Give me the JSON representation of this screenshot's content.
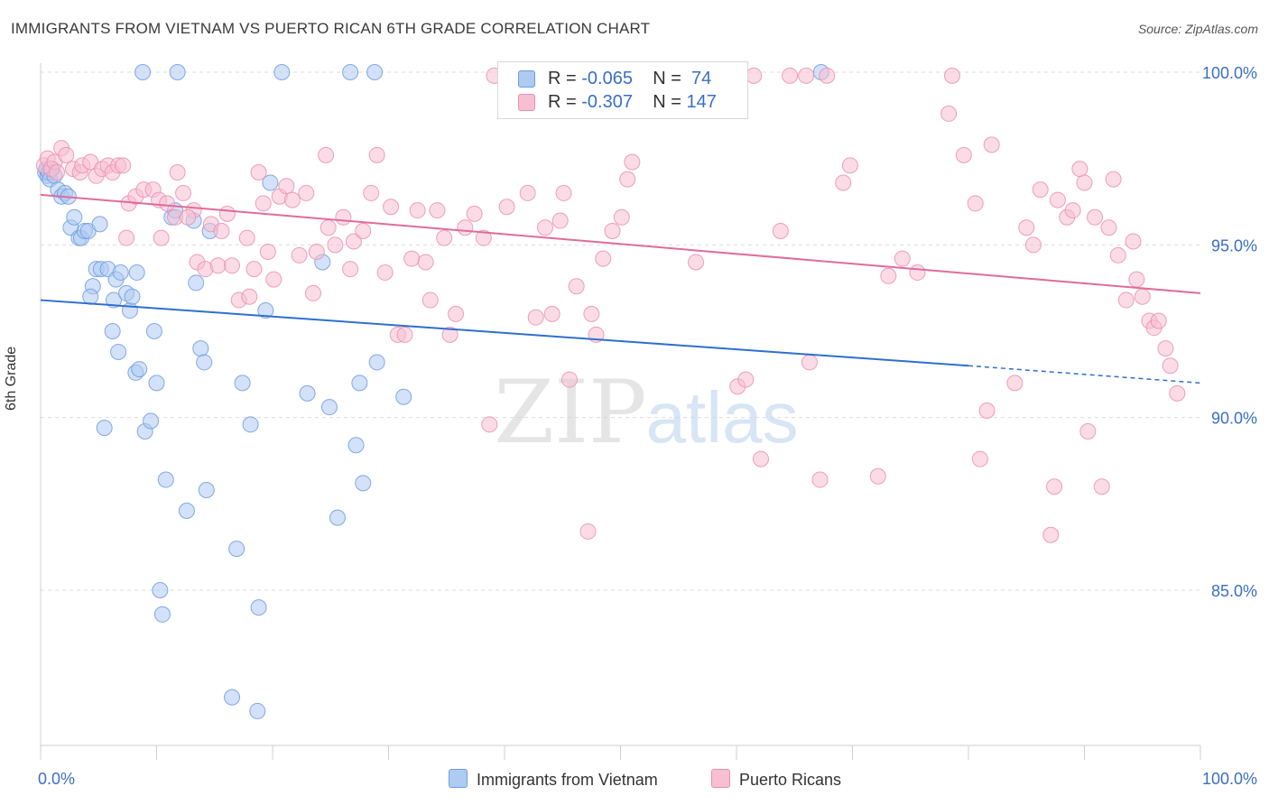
{
  "title": "IMMIGRANTS FROM VIETNAM VS PUERTO RICAN 6TH GRADE CORRELATION CHART",
  "source": "Source: ZipAtlas.com",
  "watermark": {
    "zip": "ZIP",
    "atlas": "atlas"
  },
  "legend_top": {
    "rows": [
      {
        "r_label": "R = ",
        "r_value": "-0.065",
        "n_label": "N = ",
        "n_value": "74"
      },
      {
        "r_label": "R = ",
        "r_value": "-0.307",
        "n_label": "N = ",
        "n_value": "147"
      }
    ]
  },
  "colors": {
    "vietnam_fill": "#aecbf2",
    "vietnam_stroke": "#6f9be0",
    "vietnam_line": "#2f6fcf",
    "pr_fill": "#f7bfd1",
    "pr_stroke": "#ec8eb0",
    "pr_line": "#e06c98",
    "tick_text": "#3a6fc4",
    "grid": "#dddddd"
  },
  "chart_data": {
    "type": "scatter",
    "title": "IMMIGRANTS FROM VIETNAM VS PUERTO RICAN 6TH GRADE CORRELATION CHART",
    "xlabel": "",
    "ylabel": "6th Grade",
    "xlim": [
      0,
      100
    ],
    "ylim": [
      80.5,
      101
    ],
    "x_ticks": [
      "0.0%",
      "100.0%"
    ],
    "y_ticks": [
      {
        "value": 85,
        "label": "85.0%"
      },
      {
        "value": 90,
        "label": "90.0%"
      },
      {
        "value": 95,
        "label": "95.0%"
      },
      {
        "value": 100,
        "label": "100.0%"
      }
    ],
    "grid": true,
    "legend_position": "bottom",
    "series": [
      {
        "name": "Immigrants from Vietnam",
        "R": -0.065,
        "N": 74,
        "trend": {
          "x0": 0,
          "y0": 93.4,
          "x1": 80,
          "y1": 91.5,
          "dash_to_x": 100,
          "dash_to_y": 91.0
        },
        "points": [
          [
            0.4,
            97.1
          ],
          [
            0.5,
            97.2
          ],
          [
            0.6,
            97.0
          ],
          [
            0.7,
            97.1
          ],
          [
            0.8,
            96.9
          ],
          [
            1.0,
            97.2
          ],
          [
            1.2,
            97.0
          ],
          [
            1.5,
            96.6
          ],
          [
            1.8,
            96.4
          ],
          [
            2.1,
            96.5
          ],
          [
            2.4,
            96.4
          ],
          [
            2.6,
            95.5
          ],
          [
            2.9,
            95.8
          ],
          [
            3.3,
            95.2
          ],
          [
            3.5,
            95.2
          ],
          [
            3.8,
            95.4
          ],
          [
            4.1,
            95.4
          ],
          [
            5.1,
            95.6
          ],
          [
            4.5,
            93.8
          ],
          [
            4.3,
            93.5
          ],
          [
            4.8,
            94.3
          ],
          [
            5.2,
            94.3
          ],
          [
            5.8,
            94.3
          ],
          [
            6.3,
            93.4
          ],
          [
            6.5,
            94.0
          ],
          [
            6.9,
            94.2
          ],
          [
            7.4,
            93.6
          ],
          [
            7.7,
            93.1
          ],
          [
            7.9,
            93.5
          ],
          [
            8.3,
            94.2
          ],
          [
            6.2,
            92.5
          ],
          [
            6.7,
            91.9
          ],
          [
            8.2,
            91.3
          ],
          [
            8.5,
            91.4
          ],
          [
            9.8,
            92.5
          ],
          [
            11.3,
            95.8
          ],
          [
            11.6,
            96.0
          ],
          [
            13.2,
            95.7
          ],
          [
            13.4,
            93.9
          ],
          [
            13.8,
            92.0
          ],
          [
            14.1,
            91.6
          ],
          [
            14.6,
            95.4
          ],
          [
            10.0,
            91.0
          ],
          [
            5.5,
            89.7
          ],
          [
            9.0,
            89.6
          ],
          [
            9.5,
            89.9
          ],
          [
            10.8,
            88.2
          ],
          [
            14.3,
            87.9
          ],
          [
            12.6,
            87.3
          ],
          [
            16.9,
            86.2
          ],
          [
            10.3,
            85.0
          ],
          [
            10.5,
            84.3
          ],
          [
            18.8,
            84.5
          ],
          [
            16.5,
            81.9
          ],
          [
            18.7,
            81.5
          ],
          [
            17.4,
            91.0
          ],
          [
            18.1,
            89.8
          ],
          [
            19.4,
            93.1
          ],
          [
            19.8,
            96.8
          ],
          [
            24.3,
            94.5
          ],
          [
            23.0,
            90.7
          ],
          [
            24.9,
            90.3
          ],
          [
            25.6,
            87.1
          ],
          [
            27.2,
            89.2
          ],
          [
            27.5,
            91.0
          ],
          [
            27.8,
            88.1
          ],
          [
            29.0,
            91.6
          ],
          [
            31.3,
            90.6
          ],
          [
            8.8,
            100.0
          ],
          [
            11.8,
            100.0
          ],
          [
            20.8,
            100.0
          ],
          [
            26.7,
            100.0
          ],
          [
            28.8,
            100.0
          ],
          [
            67.3,
            100.0
          ]
        ]
      },
      {
        "name": "Puerto Ricans",
        "R": -0.307,
        "N": 147,
        "trend": {
          "x0": 0,
          "y0": 96.45,
          "x1": 100,
          "y1": 93.6
        },
        "points": [
          [
            0.3,
            97.3
          ],
          [
            0.6,
            97.5
          ],
          [
            0.9,
            97.2
          ],
          [
            1.2,
            97.4
          ],
          [
            1.4,
            97.1
          ],
          [
            1.8,
            97.8
          ],
          [
            2.2,
            97.6
          ],
          [
            2.8,
            97.2
          ],
          [
            3.4,
            97.1
          ],
          [
            3.6,
            97.3
          ],
          [
            4.3,
            97.4
          ],
          [
            4.8,
            97.0
          ],
          [
            5.3,
            97.2
          ],
          [
            5.8,
            97.3
          ],
          [
            6.2,
            97.1
          ],
          [
            6.7,
            97.3
          ],
          [
            7.1,
            97.3
          ],
          [
            7.6,
            96.2
          ],
          [
            8.2,
            96.4
          ],
          [
            8.9,
            96.6
          ],
          [
            9.7,
            96.6
          ],
          [
            10.2,
            96.3
          ],
          [
            10.9,
            96.2
          ],
          [
            11.8,
            97.1
          ],
          [
            12.3,
            96.5
          ],
          [
            13.2,
            96.0
          ],
          [
            14.7,
            95.6
          ],
          [
            15.6,
            95.4
          ],
          [
            7.4,
            95.2
          ],
          [
            10.4,
            95.2
          ],
          [
            11.6,
            95.8
          ],
          [
            12.7,
            95.8
          ],
          [
            13.5,
            94.5
          ],
          [
            14.2,
            94.3
          ],
          [
            15.3,
            94.4
          ],
          [
            16.1,
            95.9
          ],
          [
            16.5,
            94.4
          ],
          [
            17.1,
            93.4
          ],
          [
            18.0,
            93.5
          ],
          [
            17.8,
            95.2
          ],
          [
            18.4,
            94.3
          ],
          [
            18.8,
            97.1
          ],
          [
            19.2,
            96.2
          ],
          [
            19.6,
            94.8
          ],
          [
            20.1,
            94.0
          ],
          [
            20.6,
            96.4
          ],
          [
            21.2,
            96.7
          ],
          [
            21.7,
            96.3
          ],
          [
            22.3,
            94.7
          ],
          [
            22.9,
            96.5
          ],
          [
            23.5,
            93.6
          ],
          [
            23.8,
            94.8
          ],
          [
            24.6,
            97.6
          ],
          [
            24.8,
            95.5
          ],
          [
            25.4,
            95.0
          ],
          [
            26.1,
            95.8
          ],
          [
            26.7,
            94.3
          ],
          [
            27.0,
            95.1
          ],
          [
            27.8,
            95.4
          ],
          [
            28.5,
            96.5
          ],
          [
            29.0,
            97.6
          ],
          [
            29.7,
            94.2
          ],
          [
            30.2,
            96.1
          ],
          [
            30.8,
            92.4
          ],
          [
            31.4,
            92.4
          ],
          [
            32.0,
            94.6
          ],
          [
            32.5,
            96.0
          ],
          [
            33.2,
            94.5
          ],
          [
            33.6,
            93.4
          ],
          [
            34.2,
            96.0
          ],
          [
            34.8,
            95.2
          ],
          [
            35.3,
            92.4
          ],
          [
            35.8,
            93.0
          ],
          [
            36.6,
            95.5
          ],
          [
            37.4,
            95.9
          ],
          [
            38.2,
            95.2
          ],
          [
            38.7,
            89.8
          ],
          [
            39.1,
            99.9
          ],
          [
            40.2,
            96.1
          ],
          [
            41.1,
            98.9
          ],
          [
            42.0,
            96.5
          ],
          [
            42.7,
            92.9
          ],
          [
            43.5,
            95.5
          ],
          [
            44.1,
            93.0
          ],
          [
            44.8,
            95.7
          ],
          [
            45.1,
            96.5
          ],
          [
            45.6,
            91.1
          ],
          [
            46.2,
            93.8
          ],
          [
            47.2,
            86.7
          ],
          [
            47.5,
            93.0
          ],
          [
            47.9,
            92.4
          ],
          [
            48.5,
            94.6
          ],
          [
            49.3,
            95.4
          ],
          [
            50.1,
            95.8
          ],
          [
            50.6,
            96.9
          ],
          [
            51.0,
            97.4
          ],
          [
            52.0,
            99.9
          ],
          [
            53.0,
            100.0
          ],
          [
            51.6,
            99.9
          ],
          [
            56.5,
            94.5
          ],
          [
            58.0,
            99.9
          ],
          [
            59.7,
            99.9
          ],
          [
            60.1,
            90.9
          ],
          [
            60.8,
            91.1
          ],
          [
            61.5,
            99.9
          ],
          [
            62.1,
            88.8
          ],
          [
            63.8,
            95.4
          ],
          [
            64.6,
            99.9
          ],
          [
            66.0,
            99.9
          ],
          [
            66.3,
            91.6
          ],
          [
            67.2,
            88.2
          ],
          [
            67.8,
            99.9
          ],
          [
            69.2,
            96.8
          ],
          [
            69.8,
            97.3
          ],
          [
            72.2,
            88.3
          ],
          [
            73.1,
            94.1
          ],
          [
            74.3,
            94.6
          ],
          [
            75.6,
            94.2
          ],
          [
            78.3,
            98.8
          ],
          [
            78.6,
            99.9
          ],
          [
            79.6,
            97.6
          ],
          [
            80.6,
            96.2
          ],
          [
            81.0,
            88.8
          ],
          [
            81.6,
            90.2
          ],
          [
            82.0,
            97.9
          ],
          [
            84.0,
            91.0
          ],
          [
            85.0,
            95.5
          ],
          [
            85.6,
            95.0
          ],
          [
            86.2,
            96.6
          ],
          [
            87.1,
            86.6
          ],
          [
            87.4,
            88.0
          ],
          [
            87.7,
            96.3
          ],
          [
            88.5,
            95.8
          ],
          [
            89.0,
            96.0
          ],
          [
            89.6,
            97.2
          ],
          [
            90.0,
            96.8
          ],
          [
            90.3,
            89.6
          ],
          [
            90.9,
            95.8
          ],
          [
            91.5,
            88.0
          ],
          [
            92.1,
            95.5
          ],
          [
            92.5,
            96.9
          ],
          [
            92.9,
            94.7
          ],
          [
            93.6,
            93.4
          ],
          [
            94.2,
            95.1
          ],
          [
            94.5,
            94.0
          ],
          [
            95.0,
            93.5
          ],
          [
            95.6,
            92.8
          ],
          [
            96.0,
            92.6
          ],
          [
            96.4,
            92.8
          ],
          [
            97.0,
            92.0
          ],
          [
            97.4,
            91.5
          ],
          [
            98.0,
            90.7
          ]
        ]
      }
    ]
  }
}
